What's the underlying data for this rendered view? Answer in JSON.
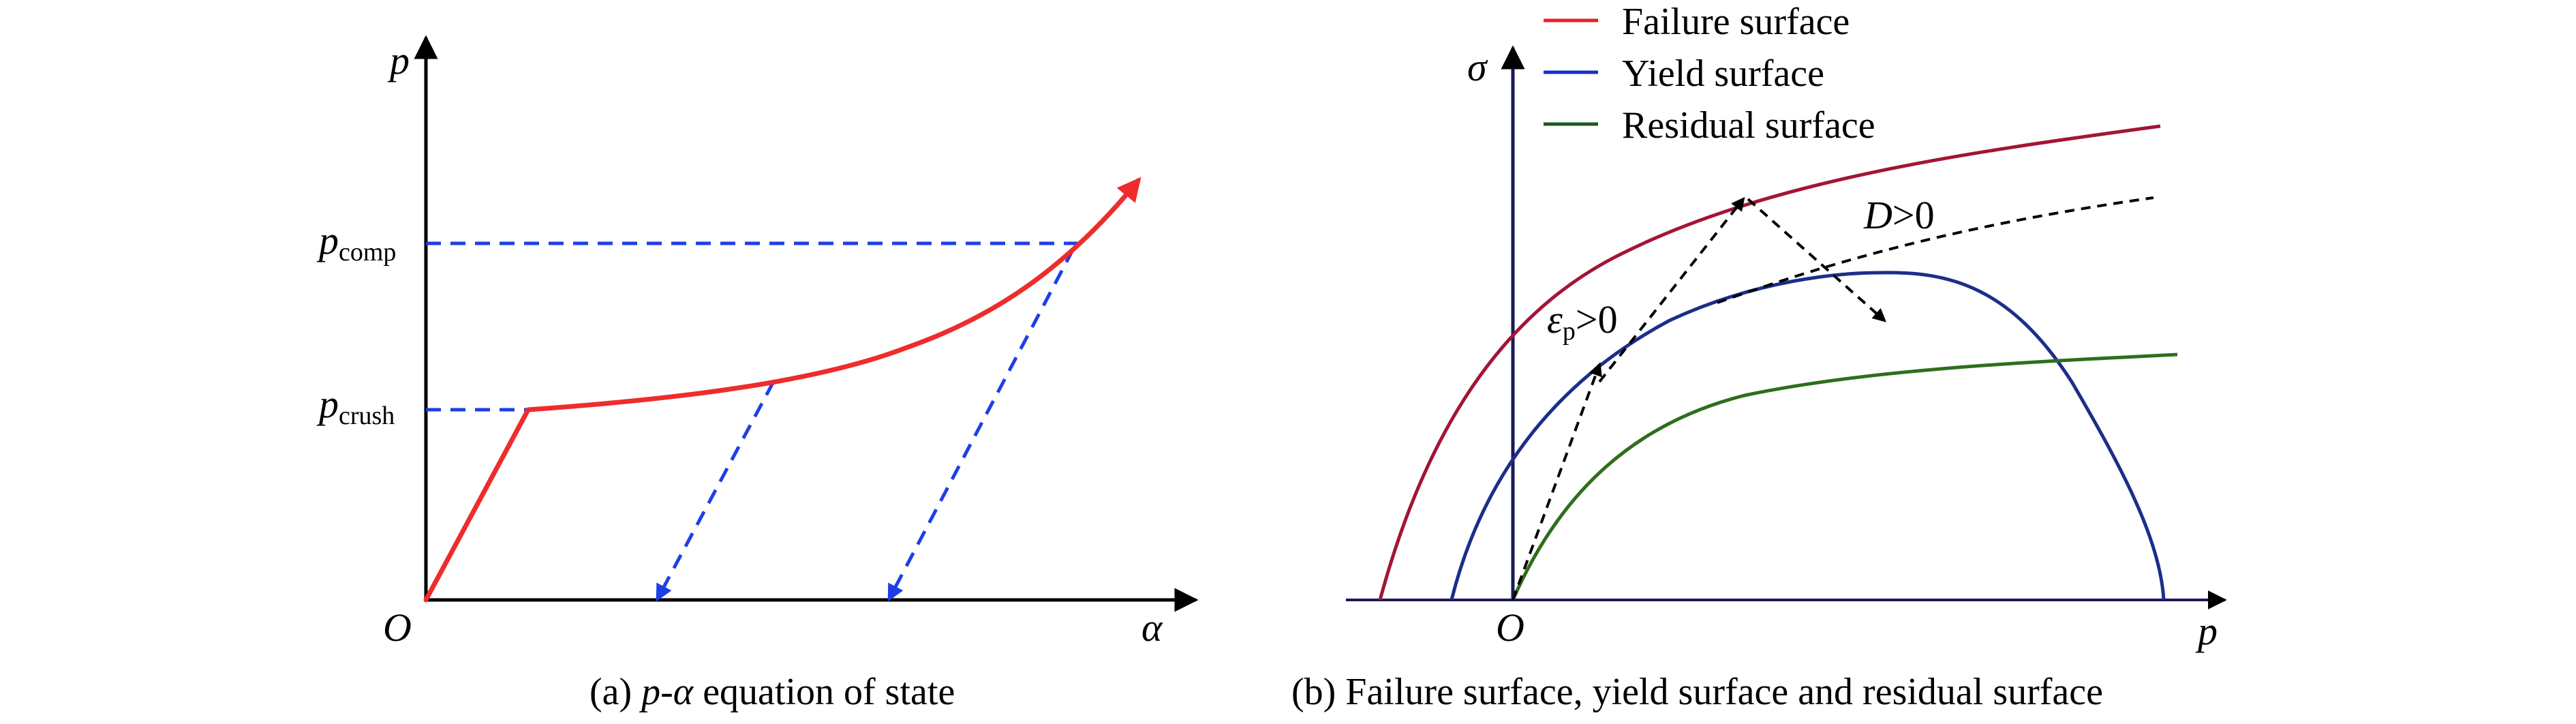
{
  "panel_a": {
    "y_axis_label": "p",
    "x_axis_label": "α",
    "origin_label": "O",
    "p_comp_main": "p",
    "p_comp_sub": "comp",
    "p_crush_main": "p",
    "p_crush_sub": "crush",
    "caption_prefix": "(a) ",
    "caption_italic": "p-α",
    "caption_suffix": " equation of state"
  },
  "panel_b": {
    "y_axis_label": "σ",
    "x_axis_label": "p",
    "origin_label": "O",
    "eps_main": "ε",
    "eps_sub": "p",
    "eps_rest": ">0",
    "d_main": "D",
    "d_rest": ">0",
    "caption": "(b) Failure surface, yield surface and residual surface",
    "legend": [
      {
        "label": "Failure surface",
        "color": "#e8202a"
      },
      {
        "label": "Yield surface",
        "color": "#1530c8"
      },
      {
        "label": "Residual surface",
        "color": "#1d5a1d"
      }
    ]
  },
  "colors": {
    "red_curve": "#ee2c2c",
    "blue_dashed": "#1e3fe6",
    "failure_curve": "#a31535",
    "yield_curve": "#1c2e8a",
    "residual_curve": "#2e6e1c",
    "axis": "#000000"
  }
}
